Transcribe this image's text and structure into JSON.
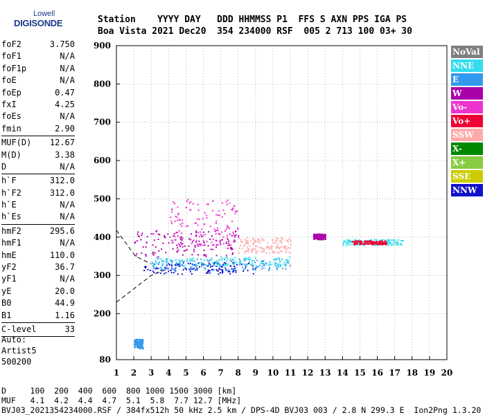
{
  "logo": {
    "top": "Lowell",
    "bottom": "DIGISONDE"
  },
  "header": {
    "labels": "Station    YYYY DAY   DDD HHMMSS P1  FFS S AXN PPS IGA PS",
    "values": "Boa Vista 2021 Dec20  354 234000 RSF  005 2 713 100 03+ 30"
  },
  "params": [
    {
      "name": "foF2",
      "value": "3.750"
    },
    {
      "name": "foF1",
      "value": "N/A"
    },
    {
      "name": "foF1p",
      "value": "N/A"
    },
    {
      "name": "foE",
      "value": "N/A"
    },
    {
      "name": "foEp",
      "value": "0.47"
    },
    {
      "name": "fxI",
      "value": "4.25"
    },
    {
      "name": "foEs",
      "value": "N/A"
    },
    {
      "name": "fmin",
      "value": "2.90"
    },
    {
      "sep": true
    },
    {
      "name": "MUF(D)",
      "value": "12.67"
    },
    {
      "name": "M(D)",
      "value": "3.38"
    },
    {
      "name": "D",
      "value": "N/A"
    },
    {
      "sep": true
    },
    {
      "name": "h`F",
      "value": "312.0"
    },
    {
      "name": "h`F2",
      "value": "312.0"
    },
    {
      "name": "h`E",
      "value": "N/A"
    },
    {
      "name": "h`Es",
      "value": "N/A"
    },
    {
      "sep": true
    },
    {
      "name": "hmF2",
      "value": "295.6"
    },
    {
      "name": "hmF1",
      "value": "N/A"
    },
    {
      "name": "hmE",
      "value": "110.0"
    },
    {
      "name": "yF2",
      "value": "36.7"
    },
    {
      "name": "yF1",
      "value": "N/A"
    },
    {
      "name": "yE",
      "value": "20.0"
    },
    {
      "name": "B0",
      "value": "44.9"
    },
    {
      "name": "B1",
      "value": "1.16"
    },
    {
      "sep": true
    },
    {
      "name": "C-level",
      "value": "33"
    },
    {
      "sep": true
    }
  ],
  "auto": {
    "line1": "Auto:",
    "line2": "Artist5",
    "line3": "500200"
  },
  "legend": [
    {
      "label": "NoVal",
      "color": "#7f7f7f"
    },
    {
      "label": "NNE",
      "color": "#33ddee"
    },
    {
      "label": "E",
      "color": "#3399ee"
    },
    {
      "label": "W",
      "color": "#aa00aa"
    },
    {
      "label": "Vo-",
      "color": "#ee33cc"
    },
    {
      "label": "Vo+",
      "color": "#ee0033"
    },
    {
      "label": "SSW",
      "color": "#ffaaaa"
    },
    {
      "label": "X-",
      "color": "#008800"
    },
    {
      "label": "X+",
      "color": "#88cc44"
    },
    {
      "label": "SSE",
      "color": "#cccc00"
    },
    {
      "label": "NNW",
      "color": "#1111cc"
    }
  ],
  "footer": {
    "line1": "D     100  200  400  600  800 1000 1500 3000 [km]",
    "line2": "MUF   4.1  4.2  4.4  4.7  5.1  5.8  7.7 12.7 [MHz]",
    "line3": "BVJ03_2021354234000.RSF / 384fx512h 50 kHz 2.5 km / DPS-4D BVJ03 003 / 2.8 N 299.3 E  Ion2Png 1.3.20"
  },
  "chart_data": {
    "type": "scatter",
    "xlim": [
      1,
      20
    ],
    "ylim": [
      80,
      900
    ],
    "x_ticks": [
      "1",
      "2",
      "3",
      "4",
      "5",
      "6",
      "7",
      "8",
      "9",
      "10",
      "11",
      "12",
      "13",
      "14",
      "15",
      "16",
      "17",
      "18",
      "19",
      "20"
    ],
    "y_ticks": [
      "80",
      "200",
      "300",
      "400",
      "500",
      "600",
      "700",
      "800",
      "900"
    ],
    "grid": true,
    "xlabel": "",
    "ylabel": "",
    "clusters": [
      {
        "series": "NNW",
        "x": [
          2.5,
          9
        ],
        "y": [
          305,
          335
        ]
      },
      {
        "series": "E",
        "x": [
          3,
          11
        ],
        "y": [
          315,
          345
        ]
      },
      {
        "series": "NNE",
        "x": [
          3,
          11
        ],
        "y": [
          325,
          350
        ]
      },
      {
        "series": "W",
        "x": [
          2,
          8
        ],
        "y": [
          350,
          420
        ]
      },
      {
        "series": "Vo-",
        "x": [
          4,
          8
        ],
        "y": [
          380,
          500
        ]
      },
      {
        "series": "SSW",
        "x": [
          8,
          11
        ],
        "y": [
          360,
          400
        ]
      },
      {
        "series": "W",
        "x": [
          12.3,
          13
        ],
        "y": [
          395,
          410
        ]
      },
      {
        "series": "NNE",
        "x": [
          14,
          17.5
        ],
        "y": [
          380,
          395
        ]
      },
      {
        "series": "Vo+",
        "x": [
          14.5,
          16.5
        ],
        "y": [
          382,
          392
        ]
      },
      {
        "series": "E",
        "x": [
          2,
          2.5
        ],
        "y": [
          110,
          135
        ]
      }
    ]
  }
}
